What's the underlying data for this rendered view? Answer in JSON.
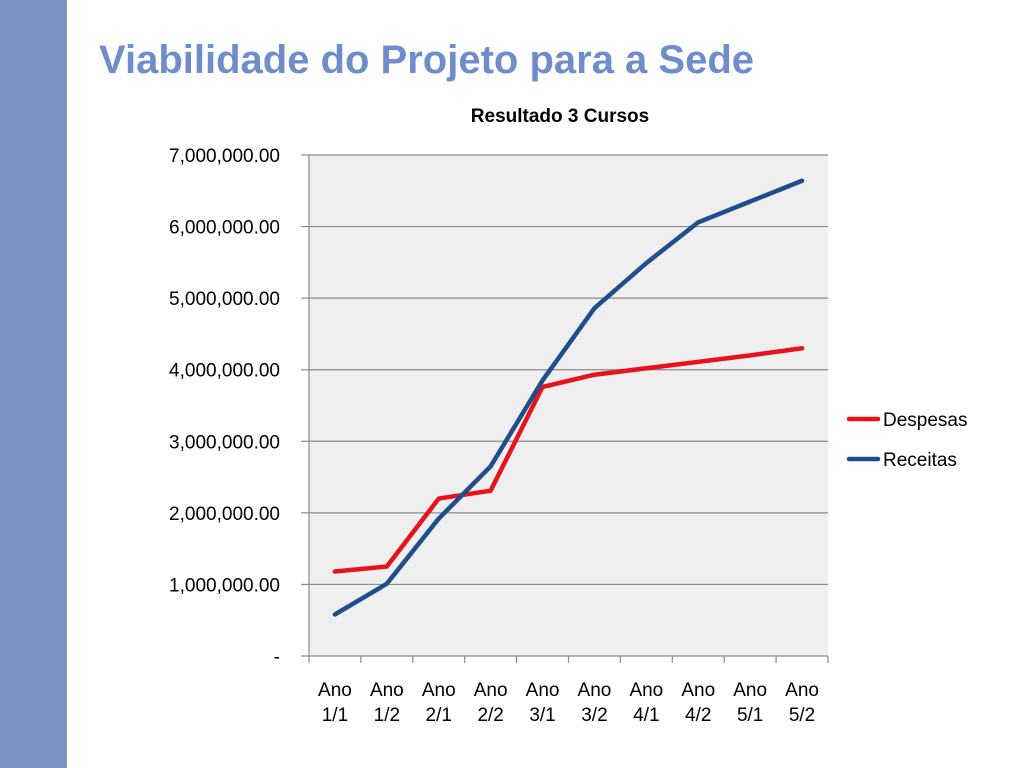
{
  "slide": {
    "title": "Viabilidade do Projeto para a Sede"
  },
  "colors": {
    "sidebar": "#7b93c4",
    "title": "#6f8ccb",
    "plot_background": "#efefef",
    "gridline": "#8c8c8c",
    "despesas": "#e8121b",
    "receitas": "#1f4e8c"
  },
  "chart_data": {
    "type": "line",
    "title": "Resultado 3 Cursos",
    "xlabel": "",
    "ylabel": "",
    "categories": [
      [
        "Ano",
        "1/1"
      ],
      [
        "Ano",
        "1/2"
      ],
      [
        "Ano",
        "2/1"
      ],
      [
        "Ano",
        "2/2"
      ],
      [
        "Ano",
        "3/1"
      ],
      [
        "Ano",
        "3/2"
      ],
      [
        "Ano",
        "4/1"
      ],
      [
        "Ano",
        "4/2"
      ],
      [
        "Ano",
        "5/1"
      ],
      [
        "Ano",
        "5/2"
      ]
    ],
    "series": [
      {
        "name": "Despesas",
        "color": "#e8121b",
        "values": [
          1180000,
          1250000,
          2200000,
          2310000,
          3760000,
          3930000,
          4020000,
          4110000,
          4200000,
          4300000
        ]
      },
      {
        "name": "Receitas",
        "color": "#1f4e8c",
        "values": [
          580000,
          1010000,
          1920000,
          2650000,
          3850000,
          4860000,
          5490000,
          6060000,
          6350000,
          6640000
        ]
      }
    ],
    "ylim": [
      0,
      7000000
    ],
    "yticks": [
      0,
      1000000,
      2000000,
      3000000,
      4000000,
      5000000,
      6000000,
      7000000
    ],
    "ytick_labels": [
      "-",
      "1,000,000.00",
      "2,000,000.00",
      "3,000,000.00",
      "4,000,000.00",
      "5,000,000.00",
      "6,000,000.00",
      "7,000,000.00"
    ],
    "grid": true,
    "legend_position": "right"
  }
}
